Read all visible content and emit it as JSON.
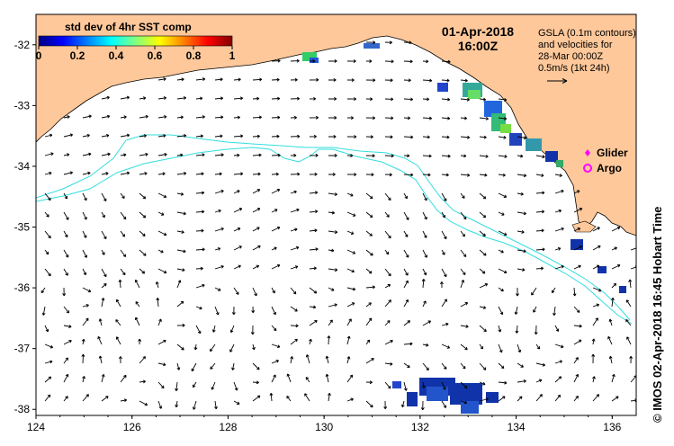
{
  "title": {
    "date": "01-Apr-2018",
    "time": "16:00Z"
  },
  "colorbar": {
    "title": "std dev of 4hr SST comp",
    "ticks": [
      "0",
      "0.2",
      "0.4",
      "0.6",
      "0.8",
      "1"
    ],
    "tick_values": [
      0,
      0.2,
      0.4,
      0.6,
      0.8,
      1.0
    ],
    "colors": [
      "#000080",
      "#0000ff",
      "#0080ff",
      "#00ffff",
      "#80ff80",
      "#ffff00",
      "#ff8000",
      "#ff0000",
      "#800000"
    ]
  },
  "gsla_info": {
    "line1": "GSLA (0.1m contours)",
    "line2": "and velocities for",
    "line3": "28-Mar 00:00Z",
    "line4": "0.5m/s (1kt 24h)"
  },
  "legend": {
    "glider_label": "Glider",
    "argo_label": "Argo",
    "glider_color": "#ff00ff",
    "argo_color": "#ff00ff"
  },
  "axes": {
    "x_ticks": [
      "124",
      "126",
      "128",
      "130",
      "132",
      "134",
      "136"
    ],
    "x_values": [
      124,
      126,
      128,
      130,
      132,
      134,
      136
    ],
    "x_range": [
      124,
      136.5
    ],
    "y_ticks": [
      "-32",
      "-33",
      "-34",
      "-35",
      "-36",
      "-37",
      "-38"
    ],
    "y_values": [
      -32,
      -33,
      -34,
      -35,
      -36,
      -37,
      -38
    ],
    "y_range": [
      -38.1,
      -31.5
    ]
  },
  "colors": {
    "land": "#fec89a",
    "ocean": "#ffffff",
    "contour": "#33dddd",
    "arrow": "#000000"
  },
  "credit": "© IMOS 02-Apr-2018 16:45 Hobart Time"
}
